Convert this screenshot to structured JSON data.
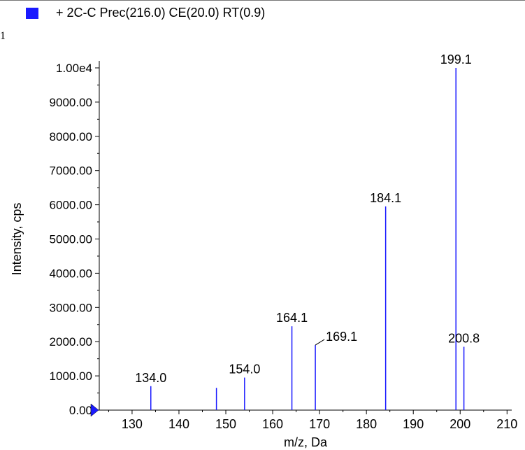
{
  "legend": {
    "label": "+ 2C-C Prec(216.0) CE(20.0) RT(0.9)",
    "color": "#1a1aff"
  },
  "corner_mark": "1",
  "chart_data": {
    "type": "bar",
    "xlabel": "m/z, Da",
    "ylabel": "Intensity, cps",
    "xlim": [
      123,
      211
    ],
    "ylim": [
      0,
      10000
    ],
    "x_ticks": [
      130,
      140,
      150,
      160,
      170,
      180,
      190,
      200,
      210
    ],
    "y_ticks": [
      {
        "value": 0,
        "label": "0.00"
      },
      {
        "value": 1000,
        "label": "1000.00"
      },
      {
        "value": 2000,
        "label": "2000.00"
      },
      {
        "value": 3000,
        "label": "3000.00"
      },
      {
        "value": 4000,
        "label": "4000.00"
      },
      {
        "value": 5000,
        "label": "5000.00"
      },
      {
        "value": 6000,
        "label": "6000.00"
      },
      {
        "value": 7000,
        "label": "7000.00"
      },
      {
        "value": 8000,
        "label": "8000.00"
      },
      {
        "value": 9000,
        "label": "9000.00"
      },
      {
        "value": 10000,
        "label": "1.00e4"
      }
    ],
    "series": [
      {
        "color": "#1a1aff",
        "peaks": [
          {
            "mz": 134.0,
            "intensity": 700,
            "label": "134.0"
          },
          {
            "mz": 148.0,
            "intensity": 650,
            "label": ""
          },
          {
            "mz": 154.0,
            "intensity": 950,
            "label": "154.0"
          },
          {
            "mz": 164.1,
            "intensity": 2450,
            "label": "164.1"
          },
          {
            "mz": 169.1,
            "intensity": 1900,
            "label": "169.1"
          },
          {
            "mz": 184.1,
            "intensity": 5950,
            "label": "184.1"
          },
          {
            "mz": 199.1,
            "intensity": 10000,
            "label": "199.1"
          },
          {
            "mz": 200.8,
            "intensity": 1850,
            "label": "200.8"
          }
        ]
      }
    ]
  }
}
